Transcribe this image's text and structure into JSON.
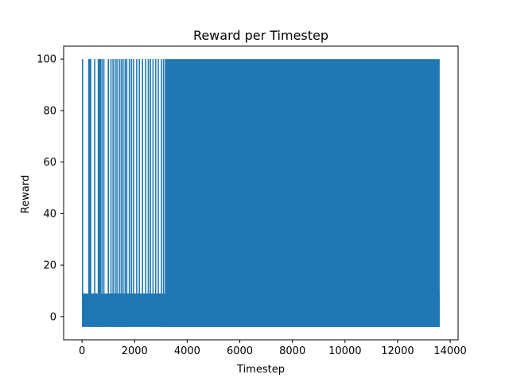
{
  "chart_data": {
    "type": "line",
    "title": "Reward per Timestep",
    "xlabel": "Timestep",
    "ylabel": "Reward",
    "xlim": [
      -700,
      14300
    ],
    "ylim": [
      -9,
      105
    ],
    "xticks": [
      0,
      2000,
      4000,
      6000,
      8000,
      10000,
      12000,
      14000
    ],
    "yticks": [
      0,
      20,
      40,
      60,
      80,
      100
    ],
    "x_range": [
      0,
      13600
    ],
    "reward_values_observed": [
      -4,
      -2,
      0,
      2,
      5,
      8,
      9,
      100
    ],
    "dense_reward_band": [
      -4,
      9
    ],
    "max_reward": 100,
    "sparse_spike_timesteps": [
      20,
      260,
      300,
      330,
      480,
      620,
      660,
      700,
      760,
      830,
      1000,
      1100,
      1180,
      1260,
      1330,
      1420,
      1490,
      1560,
      1640,
      1700,
      1800,
      1880,
      1960,
      2080,
      2180,
      2300,
      2420,
      2520,
      2600,
      2700,
      2800,
      2900,
      3020,
      3100
    ],
    "dense_spikes_from_timestep": 3150,
    "series": [
      {
        "color": "#1f77b4"
      }
    ],
    "grid": false,
    "legend": "none"
  }
}
